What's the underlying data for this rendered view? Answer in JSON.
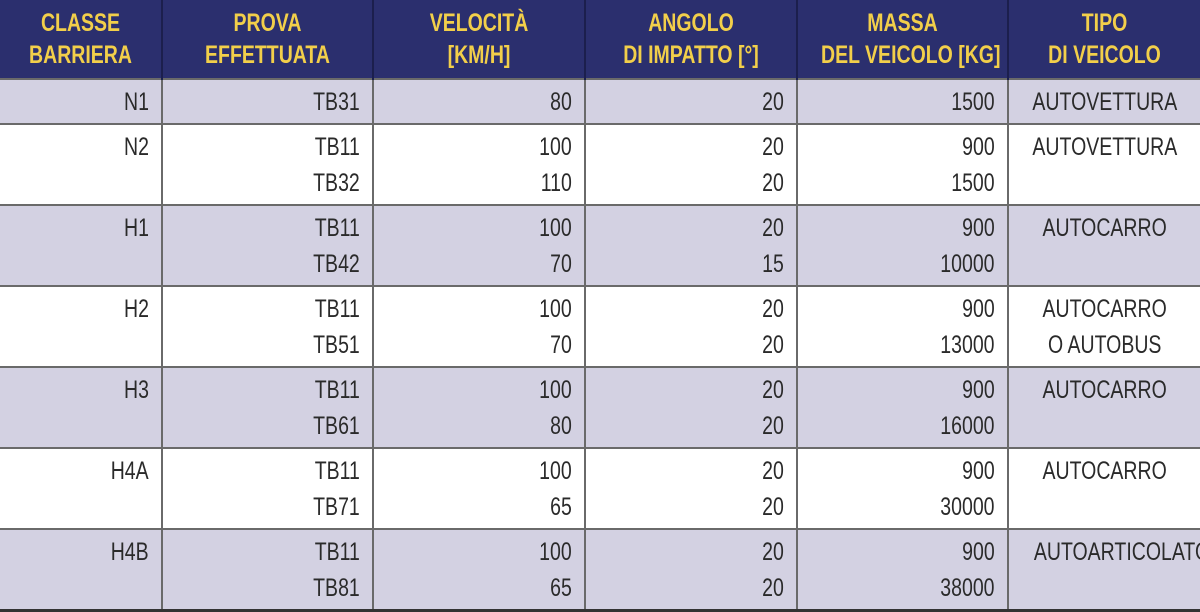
{
  "headers": [
    [
      "CLASSE",
      "BARRIERA"
    ],
    [
      "PROVA",
      "EFFETTUATA"
    ],
    [
      "VELOCITÀ",
      "[KM/H]"
    ],
    [
      "ANGOLO",
      "DI IMPATTO [°]"
    ],
    [
      "MASSA",
      "DEL VEICOLO [KG]"
    ],
    [
      "TIPO",
      "DI VEICOLO"
    ]
  ],
  "rows": [
    {
      "classe": "N1",
      "tests": [
        {
          "prova": "TB31",
          "velocita": "80",
          "angolo": "20",
          "massa": "1500"
        }
      ],
      "tipo": [
        "AUTOVETTURA"
      ]
    },
    {
      "classe": "N2",
      "tests": [
        {
          "prova": "TB11",
          "velocita": "100",
          "angolo": "20",
          "massa": "900"
        },
        {
          "prova": "TB32",
          "velocita": "110",
          "angolo": "20",
          "massa": "1500"
        }
      ],
      "tipo": [
        "AUTOVETTURA"
      ]
    },
    {
      "classe": "H1",
      "tests": [
        {
          "prova": "TB11",
          "velocita": "100",
          "angolo": "20",
          "massa": "900"
        },
        {
          "prova": "TB42",
          "velocita": "70",
          "angolo": "15",
          "massa": "10000"
        }
      ],
      "tipo": [
        "AUTOCARRO"
      ]
    },
    {
      "classe": "H2",
      "tests": [
        {
          "prova": "TB11",
          "velocita": "100",
          "angolo": "20",
          "massa": "900"
        },
        {
          "prova": "TB51",
          "velocita": "70",
          "angolo": "20",
          "massa": "13000"
        }
      ],
      "tipo": [
        "AUTOCARRO",
        "O AUTOBUS"
      ]
    },
    {
      "classe": "H3",
      "tests": [
        {
          "prova": "TB11",
          "velocita": "100",
          "angolo": "20",
          "massa": "900"
        },
        {
          "prova": "TB61",
          "velocita": "80",
          "angolo": "20",
          "massa": "16000"
        }
      ],
      "tipo": [
        "AUTOCARRO"
      ]
    },
    {
      "classe": "H4A",
      "tests": [
        {
          "prova": "TB11",
          "velocita": "100",
          "angolo": "20",
          "massa": "900"
        },
        {
          "prova": "TB71",
          "velocita": "65",
          "angolo": "20",
          "massa": "30000"
        }
      ],
      "tipo": [
        "AUTOCARRO"
      ]
    },
    {
      "classe": "H4B",
      "tests": [
        {
          "prova": "TB11",
          "velocita": "100",
          "angolo": "20",
          "massa": "900"
        },
        {
          "prova": "TB81",
          "velocita": "65",
          "angolo": "20",
          "massa": "38000"
        }
      ],
      "tipo": [
        "AUTOARTICOLATO"
      ]
    }
  ],
  "colors": {
    "header_bg": "#2b2f6e",
    "header_text": "#f2cf4a",
    "shaded_row": "#d3d1e2"
  }
}
